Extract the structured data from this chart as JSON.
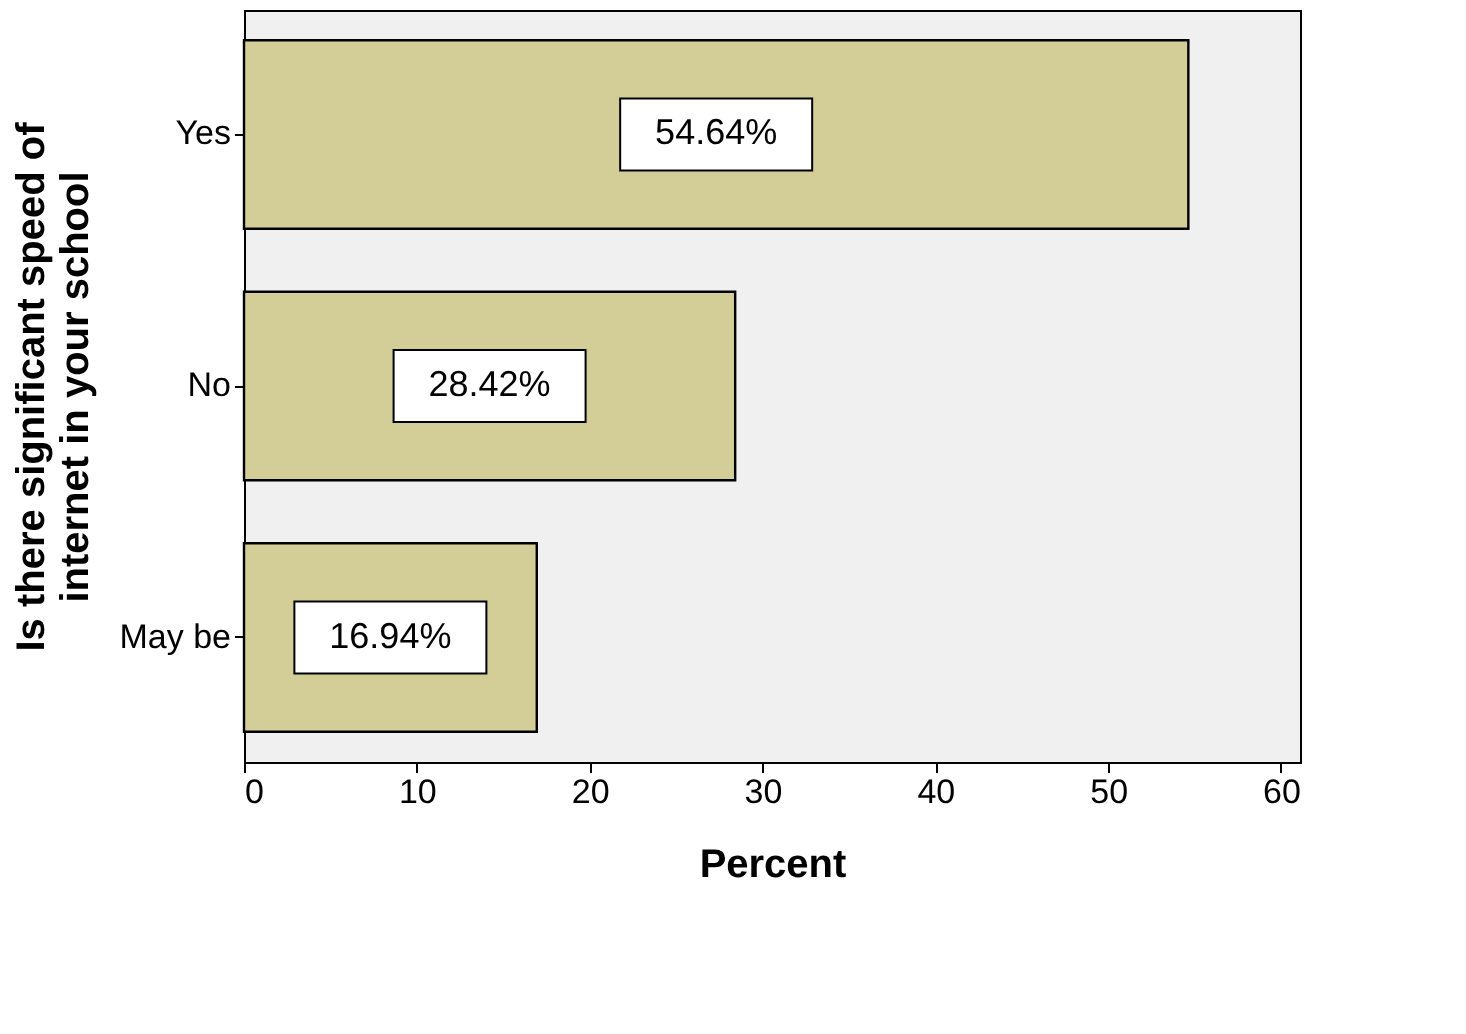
{
  "chart_data": {
    "type": "bar",
    "orientation": "horizontal",
    "categories": [
      "Yes",
      "No",
      "May be"
    ],
    "values": [
      54.64,
      28.42,
      16.94
    ],
    "value_labels": [
      "54.64%",
      "28.42%",
      "16.94%"
    ],
    "color": "#d3ce98",
    "xlim": [
      0,
      61.1
    ],
    "xticks": [
      0,
      10,
      20,
      30,
      40,
      50,
      60
    ],
    "xlabel": "Percent",
    "ylabel": "Is there significant speed of internet in your school",
    "grid": false
  }
}
